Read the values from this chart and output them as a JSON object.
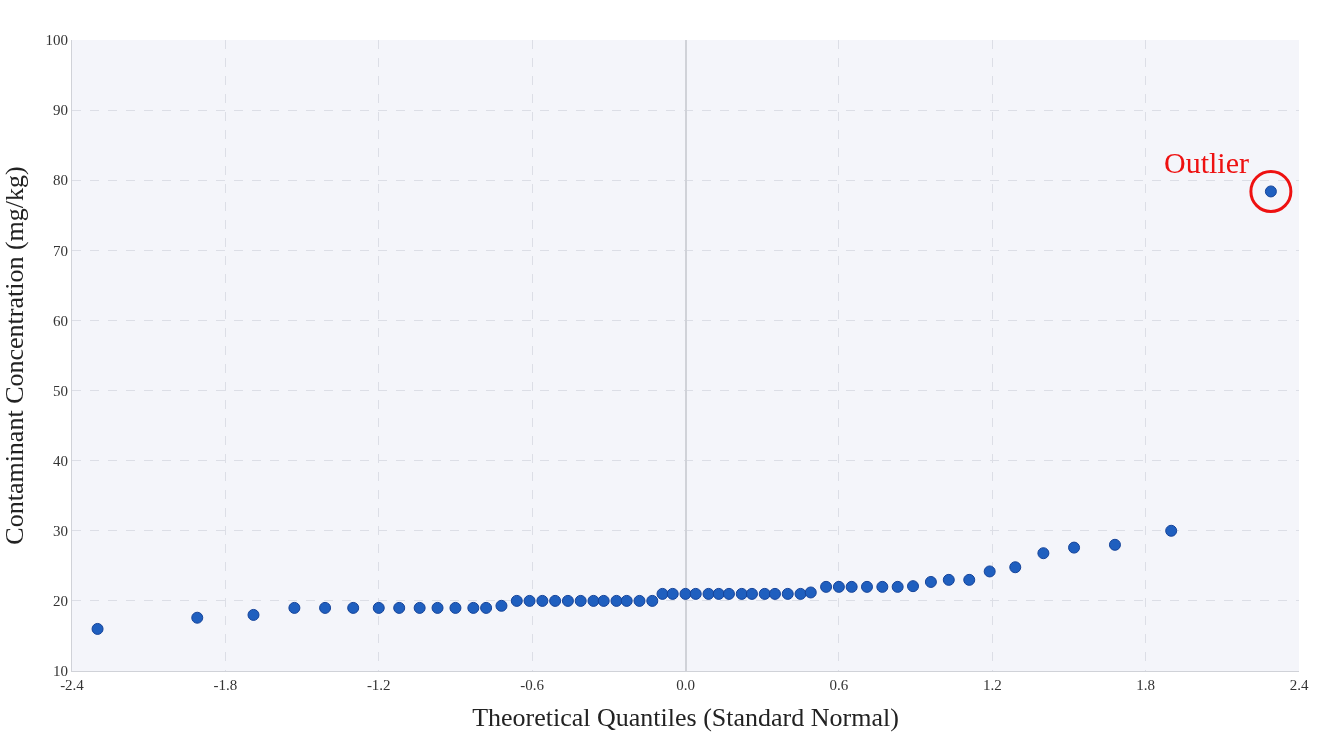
{
  "chart_data": {
    "type": "scatter",
    "xlabel": "Theoretical Quantiles (Standard Normal)",
    "ylabel": "Contaminant Concentration (mg/kg)",
    "x": [
      -2.3,
      -1.91,
      -1.69,
      -1.53,
      -1.41,
      -1.3,
      -1.2,
      -1.12,
      -1.04,
      -0.97,
      -0.9,
      -0.83,
      -0.78,
      -0.72,
      -0.66,
      -0.61,
      -0.56,
      -0.51,
      -0.46,
      -0.41,
      -0.36,
      -0.32,
      -0.27,
      -0.23,
      -0.18,
      -0.13,
      -0.09,
      -0.05,
      0.0,
      0.04,
      0.09,
      0.13,
      0.17,
      0.22,
      0.26,
      0.31,
      0.35,
      0.4,
      0.45,
      0.49,
      0.55,
      0.6,
      0.65,
      0.71,
      0.77,
      0.83,
      0.89,
      0.96,
      1.03,
      1.11,
      1.19,
      1.29,
      1.4,
      1.52,
      1.68,
      1.9,
      2.29
    ],
    "series": [
      {
        "color": "#1f5fbf",
        "values": [
          16.0,
          17.6,
          18.0,
          19,
          19,
          19,
          19,
          19,
          19,
          19,
          19,
          19,
          19,
          19.3,
          20,
          20,
          20,
          20,
          20,
          20,
          20,
          20,
          20,
          20,
          20,
          20,
          21,
          21,
          21,
          21,
          21,
          21,
          21,
          21,
          21,
          21,
          21,
          21,
          21,
          21.2,
          22,
          22,
          22,
          22,
          22,
          22,
          22.1,
          22.7,
          23.0,
          23.0,
          24.2,
          24.8,
          26.8,
          27.6,
          28.0,
          30.0,
          78.4
        ]
      }
    ],
    "annotations": [
      {
        "text": "Outlier",
        "x": 2.29,
        "y": 78.4
      }
    ],
    "xlim": [
      -2.4,
      2.4
    ],
    "xticks": [
      {
        "value": -2.4,
        "label": "-2.4"
      },
      {
        "value": -1.8,
        "label": "-1.8"
      },
      {
        "value": -1.2,
        "label": "-1.2"
      },
      {
        "value": -0.6,
        "label": "-0.6"
      },
      {
        "value": 0,
        "label": "0.0"
      },
      {
        "value": 0.6,
        "label": "0.6"
      },
      {
        "value": 1.2,
        "label": "1.2"
      },
      {
        "value": 1.8,
        "label": "1.8"
      },
      {
        "value": 2.4,
        "label": "2.4"
      }
    ],
    "ylim": [
      10,
      100
    ],
    "yticks": [
      10,
      20,
      30,
      40,
      50,
      60,
      70,
      80,
      90,
      100
    ],
    "grid": true,
    "marker": "circle"
  }
}
